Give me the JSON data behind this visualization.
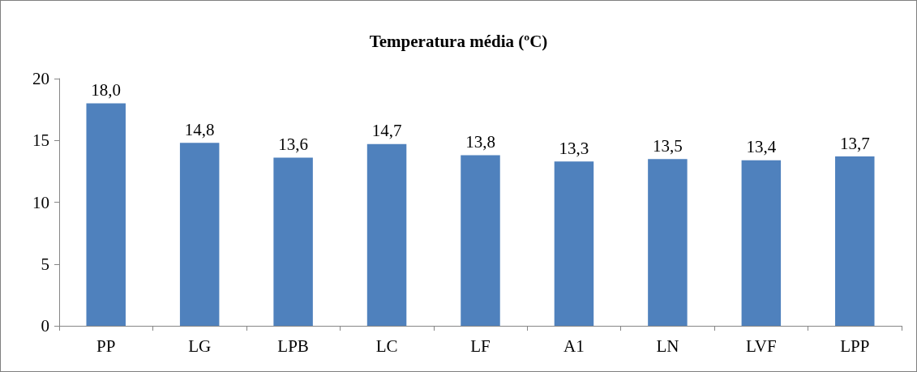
{
  "chart_data": {
    "type": "bar",
    "title": "Temperatura média (ºC)",
    "categories": [
      "PP",
      "LG",
      "LPB",
      "LC",
      "LF",
      "A1",
      "LN",
      "LVF",
      "LPP"
    ],
    "values": [
      18.0,
      14.8,
      13.6,
      14.7,
      13.8,
      13.3,
      13.5,
      13.4,
      13.7
    ],
    "value_labels": [
      "18,0",
      "14,8",
      "13,6",
      "14,7",
      "13,8",
      "13,3",
      "13,5",
      "13,4",
      "13,7"
    ],
    "color": "#4f81bd",
    "ylim": [
      0,
      20
    ],
    "yticks": [
      0,
      5,
      10,
      15,
      20
    ],
    "grid": false
  }
}
